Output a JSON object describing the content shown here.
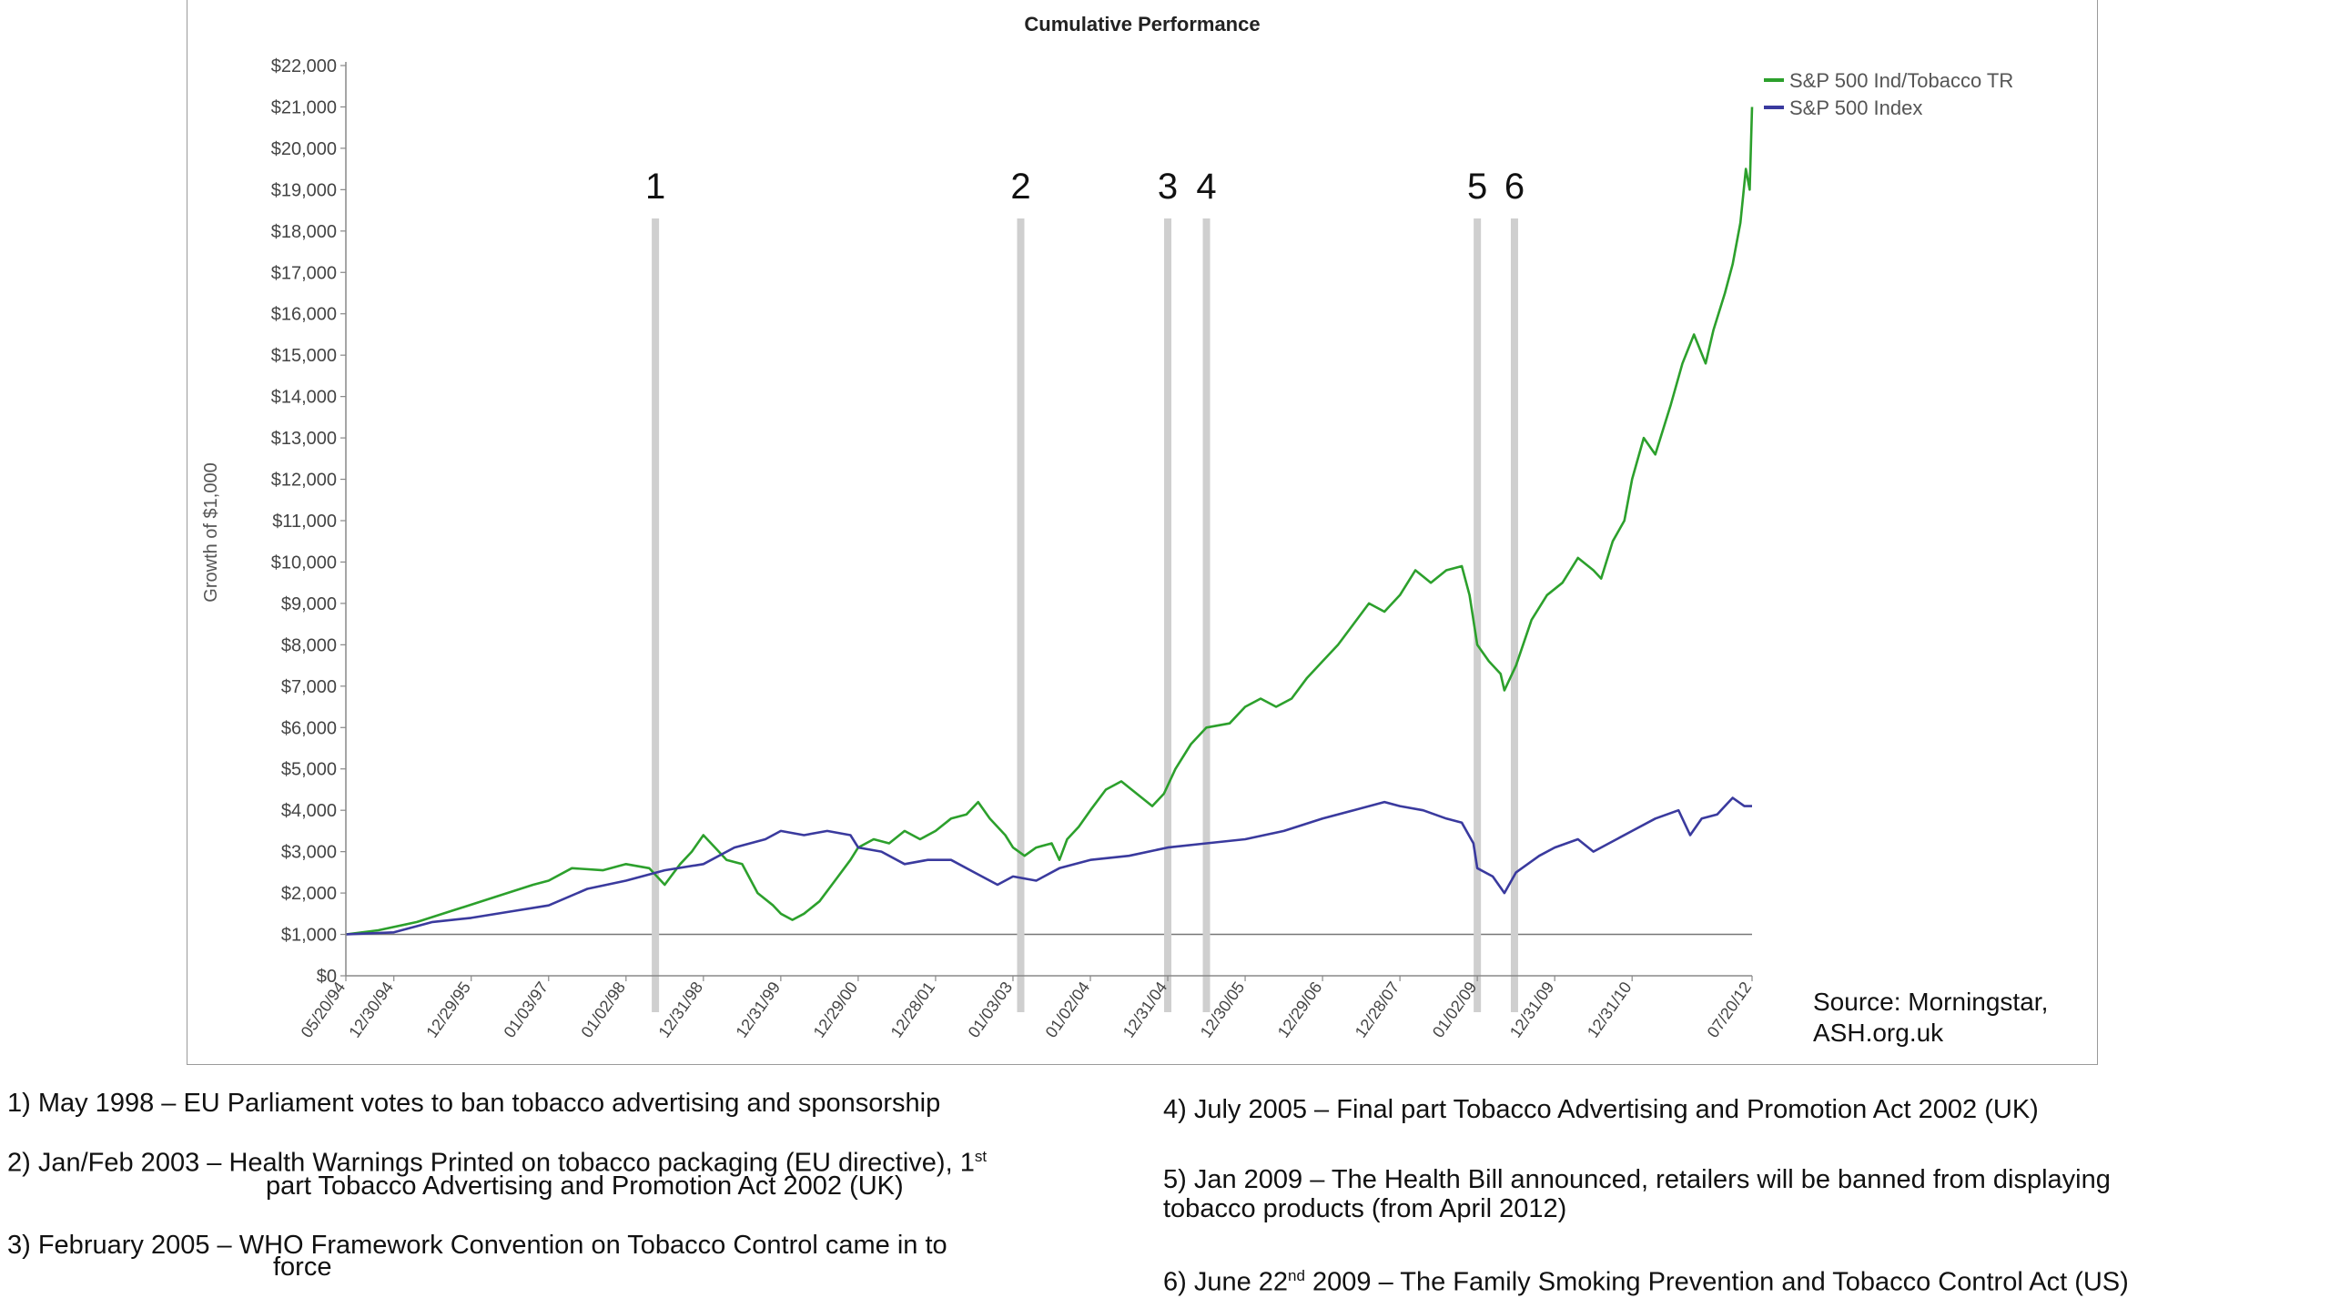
{
  "chart_data": {
    "type": "line",
    "title": "Cumulative Performance",
    "ylabel": "Growth of $1,000",
    "xlabel": "",
    "ylim": [
      0,
      22000
    ],
    "y_ticks": [
      "$0",
      "$1,000",
      "$2,000",
      "$3,000",
      "$4,000",
      "$5,000",
      "$6,000",
      "$7,000",
      "$8,000",
      "$9,000",
      "$10,000",
      "$11,000",
      "$12,000",
      "$13,000",
      "$14,000",
      "$15,000",
      "$16,000",
      "$17,000",
      "$18,000",
      "$19,000",
      "$20,000",
      "$21,000",
      "$22,000"
    ],
    "xlim": [
      1994.38,
      2012.55
    ],
    "x_ticks": [
      {
        "label": "05/20/94",
        "t": 1994.38
      },
      {
        "label": "12/30/94",
        "t": 1995.0
      },
      {
        "label": "12/29/95",
        "t": 1996.0
      },
      {
        "label": "01/03/97",
        "t": 1997.0
      },
      {
        "label": "01/02/98",
        "t": 1998.0
      },
      {
        "label": "12/31/98",
        "t": 1999.0
      },
      {
        "label": "12/31/99",
        "t": 2000.0
      },
      {
        "label": "12/29/00",
        "t": 2001.0
      },
      {
        "label": "12/28/01",
        "t": 2002.0
      },
      {
        "label": "01/03/03",
        "t": 2003.0
      },
      {
        "label": "01/02/04",
        "t": 2004.0
      },
      {
        "label": "12/31/04",
        "t": 2005.0
      },
      {
        "label": "12/30/05",
        "t": 2006.0
      },
      {
        "label": "12/29/06",
        "t": 2007.0
      },
      {
        "label": "12/28/07",
        "t": 2008.0
      },
      {
        "label": "01/02/09",
        "t": 2009.0
      },
      {
        "label": "12/31/09",
        "t": 2010.0
      },
      {
        "label": "12/31/10",
        "t": 2011.0
      },
      {
        "label": "07/20/12",
        "t": 2012.55
      }
    ],
    "legend_position": "top-right",
    "series": [
      {
        "name": "S&P 500 Ind/Tobacco TR",
        "color": "#2ca02c",
        "points": [
          [
            1994.38,
            1000
          ],
          [
            1994.8,
            1100
          ],
          [
            1995.3,
            1300
          ],
          [
            1995.8,
            1600
          ],
          [
            1996.3,
            1900
          ],
          [
            1996.8,
            2200
          ],
          [
            1997.0,
            2300
          ],
          [
            1997.3,
            2600
          ],
          [
            1997.7,
            2550
          ],
          [
            1998.0,
            2700
          ],
          [
            1998.3,
            2600
          ],
          [
            1998.5,
            2200
          ],
          [
            1998.7,
            2700
          ],
          [
            1998.85,
            3000
          ],
          [
            1999.0,
            3400
          ],
          [
            1999.15,
            3100
          ],
          [
            1999.3,
            2800
          ],
          [
            1999.5,
            2700
          ],
          [
            1999.7,
            2000
          ],
          [
            1999.9,
            1700
          ],
          [
            2000.0,
            1500
          ],
          [
            2000.15,
            1350
          ],
          [
            2000.3,
            1500
          ],
          [
            2000.5,
            1800
          ],
          [
            2000.7,
            2300
          ],
          [
            2000.9,
            2800
          ],
          [
            2001.0,
            3100
          ],
          [
            2001.2,
            3300
          ],
          [
            2001.4,
            3200
          ],
          [
            2001.6,
            3500
          ],
          [
            2001.8,
            3300
          ],
          [
            2002.0,
            3500
          ],
          [
            2002.2,
            3800
          ],
          [
            2002.4,
            3900
          ],
          [
            2002.55,
            4200
          ],
          [
            2002.7,
            3800
          ],
          [
            2002.9,
            3400
          ],
          [
            2003.0,
            3100
          ],
          [
            2003.15,
            2900
          ],
          [
            2003.3,
            3100
          ],
          [
            2003.5,
            3200
          ],
          [
            2003.6,
            2800
          ],
          [
            2003.7,
            3300
          ],
          [
            2003.85,
            3600
          ],
          [
            2004.0,
            4000
          ],
          [
            2004.2,
            4500
          ],
          [
            2004.4,
            4700
          ],
          [
            2004.6,
            4400
          ],
          [
            2004.8,
            4100
          ],
          [
            2004.95,
            4400
          ],
          [
            2005.1,
            5000
          ],
          [
            2005.3,
            5600
          ],
          [
            2005.5,
            6000
          ],
          [
            2005.8,
            6100
          ],
          [
            2006.0,
            6500
          ],
          [
            2006.2,
            6700
          ],
          [
            2006.4,
            6500
          ],
          [
            2006.6,
            6700
          ],
          [
            2006.8,
            7200
          ],
          [
            2007.0,
            7600
          ],
          [
            2007.2,
            8000
          ],
          [
            2007.4,
            8500
          ],
          [
            2007.6,
            9000
          ],
          [
            2007.8,
            8800
          ],
          [
            2008.0,
            9200
          ],
          [
            2008.2,
            9800
          ],
          [
            2008.4,
            9500
          ],
          [
            2008.6,
            9800
          ],
          [
            2008.8,
            9900
          ],
          [
            2008.9,
            9200
          ],
          [
            2009.0,
            8000
          ],
          [
            2009.15,
            7600
          ],
          [
            2009.3,
            7300
          ],
          [
            2009.35,
            6900
          ],
          [
            2009.5,
            7500
          ],
          [
            2009.7,
            8600
          ],
          [
            2009.9,
            9200
          ],
          [
            2010.1,
            9500
          ],
          [
            2010.3,
            10100
          ],
          [
            2010.5,
            9800
          ],
          [
            2010.6,
            9600
          ],
          [
            2010.75,
            10500
          ],
          [
            2010.9,
            11000
          ],
          [
            2011.0,
            12000
          ],
          [
            2011.15,
            13000
          ],
          [
            2011.3,
            12600
          ],
          [
            2011.5,
            13800
          ],
          [
            2011.65,
            14800
          ],
          [
            2011.8,
            15500
          ],
          [
            2011.95,
            14800
          ],
          [
            2012.05,
            15600
          ],
          [
            2012.2,
            16500
          ],
          [
            2012.3,
            17200
          ],
          [
            2012.4,
            18200
          ],
          [
            2012.47,
            19500
          ],
          [
            2012.52,
            19000
          ],
          [
            2012.55,
            21000
          ]
        ]
      },
      {
        "name": "S&P 500 Index",
        "color": "#3a3a9e",
        "points": [
          [
            1994.38,
            1000
          ],
          [
            1995.0,
            1050
          ],
          [
            1995.5,
            1300
          ],
          [
            1996.0,
            1400
          ],
          [
            1996.5,
            1550
          ],
          [
            1997.0,
            1700
          ],
          [
            1997.5,
            2100
          ],
          [
            1998.0,
            2300
          ],
          [
            1998.5,
            2550
          ],
          [
            1999.0,
            2700
          ],
          [
            1999.4,
            3100
          ],
          [
            1999.8,
            3300
          ],
          [
            2000.0,
            3500
          ],
          [
            2000.3,
            3400
          ],
          [
            2000.6,
            3500
          ],
          [
            2000.9,
            3400
          ],
          [
            2001.0,
            3100
          ],
          [
            2001.3,
            3000
          ],
          [
            2001.6,
            2700
          ],
          [
            2001.9,
            2800
          ],
          [
            2002.2,
            2800
          ],
          [
            2002.5,
            2500
          ],
          [
            2002.8,
            2200
          ],
          [
            2003.0,
            2400
          ],
          [
            2003.3,
            2300
          ],
          [
            2003.6,
            2600
          ],
          [
            2004.0,
            2800
          ],
          [
            2004.5,
            2900
          ],
          [
            2005.0,
            3100
          ],
          [
            2005.5,
            3200
          ],
          [
            2006.0,
            3300
          ],
          [
            2006.5,
            3500
          ],
          [
            2007.0,
            3800
          ],
          [
            2007.4,
            4000
          ],
          [
            2007.8,
            4200
          ],
          [
            2008.0,
            4100
          ],
          [
            2008.3,
            4000
          ],
          [
            2008.6,
            3800
          ],
          [
            2008.8,
            3700
          ],
          [
            2008.95,
            3200
          ],
          [
            2009.0,
            2600
          ],
          [
            2009.2,
            2400
          ],
          [
            2009.35,
            2000
          ],
          [
            2009.5,
            2500
          ],
          [
            2009.8,
            2900
          ],
          [
            2010.0,
            3100
          ],
          [
            2010.3,
            3300
          ],
          [
            2010.5,
            3000
          ],
          [
            2010.8,
            3300
          ],
          [
            2011.0,
            3500
          ],
          [
            2011.3,
            3800
          ],
          [
            2011.6,
            4000
          ],
          [
            2011.75,
            3400
          ],
          [
            2011.9,
            3800
          ],
          [
            2012.1,
            3900
          ],
          [
            2012.3,
            4300
          ],
          [
            2012.45,
            4100
          ],
          [
            2012.55,
            4100
          ]
        ]
      }
    ],
    "events": [
      {
        "label": "1",
        "t": 1998.38
      },
      {
        "label": "2",
        "t": 2003.1
      },
      {
        "label": "3",
        "t": 2005.0
      },
      {
        "label": "4",
        "t": 2005.5
      },
      {
        "label": "5",
        "t": 2009.0
      },
      {
        "label": "6",
        "t": 2009.48
      }
    ],
    "source_note": [
      "Source: Morningstar,",
      "ASH.org.uk"
    ]
  },
  "notes": {
    "n1": "1) May 1998 – EU Parliament votes to ban tobacco advertising and sponsorship",
    "n2_line1": "2) Jan/Feb 2003 – Health Warnings Printed on tobacco packaging (EU directive), 1",
    "n2_sup": "st",
    "n2_line2": "part Tobacco Advertising and Promotion Act 2002 (UK)",
    "n3_line1": "3) February 2005 – WHO Framework Convention on Tobacco Control came in to",
    "n3_line2": "force",
    "n4": "4) July 2005 – Final part Tobacco Advertising and Promotion Act 2002 (UK)",
    "n5_line1": "5) Jan 2009 – The Health Bill announced, retailers will be banned from displaying",
    "n5_line2": "tobacco products (from April 2012)",
    "n6_a": "6) June 22",
    "n6_sup": "nd",
    "n6_b": " 2009 – The Family Smoking Prevention and Tobacco Control Act (US)"
  }
}
